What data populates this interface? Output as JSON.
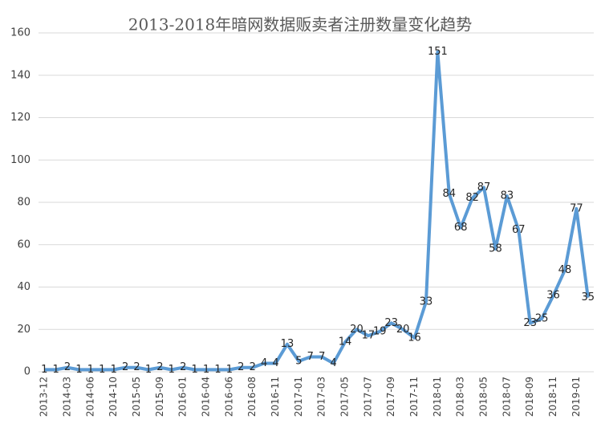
{
  "chart_data": {
    "type": "line",
    "title": "2013-2018年暗网数据贩卖者注册数量变化趋势",
    "categories": [
      "2013-12",
      null,
      "2014-03",
      null,
      "2014-06",
      null,
      "2014-10",
      null,
      "2015-05",
      null,
      "2015-09",
      null,
      "2016-01",
      null,
      "2016-04",
      null,
      "2016-06",
      null,
      "2016-08",
      null,
      "2016-11",
      null,
      "2017-01",
      null,
      "2017-03",
      null,
      "2017-05",
      null,
      "2017-07",
      null,
      "2017-09",
      null,
      "2017-11",
      null,
      "2018-01",
      null,
      "2018-03",
      null,
      "2018-05",
      null,
      "2018-07",
      null,
      "2018-09",
      null,
      "2018-11",
      null,
      "2019-01",
      null
    ],
    "values": [
      1,
      1,
      2,
      1,
      1,
      1,
      1,
      2,
      2,
      1,
      2,
      1,
      2,
      1,
      1,
      1,
      1,
      2,
      2,
      4,
      4,
      13,
      5,
      7,
      7,
      4,
      14,
      20,
      17,
      19,
      23,
      20,
      16,
      33,
      151,
      84,
      68,
      82,
      87,
      58,
      83,
      67,
      23,
      25,
      36,
      48,
      77,
      35
    ],
    "color": "#5b9bd5",
    "ylim": [
      0,
      160
    ],
    "yticks": [
      0,
      20,
      40,
      60,
      80,
      100,
      120,
      140,
      160
    ],
    "grid": true
  }
}
